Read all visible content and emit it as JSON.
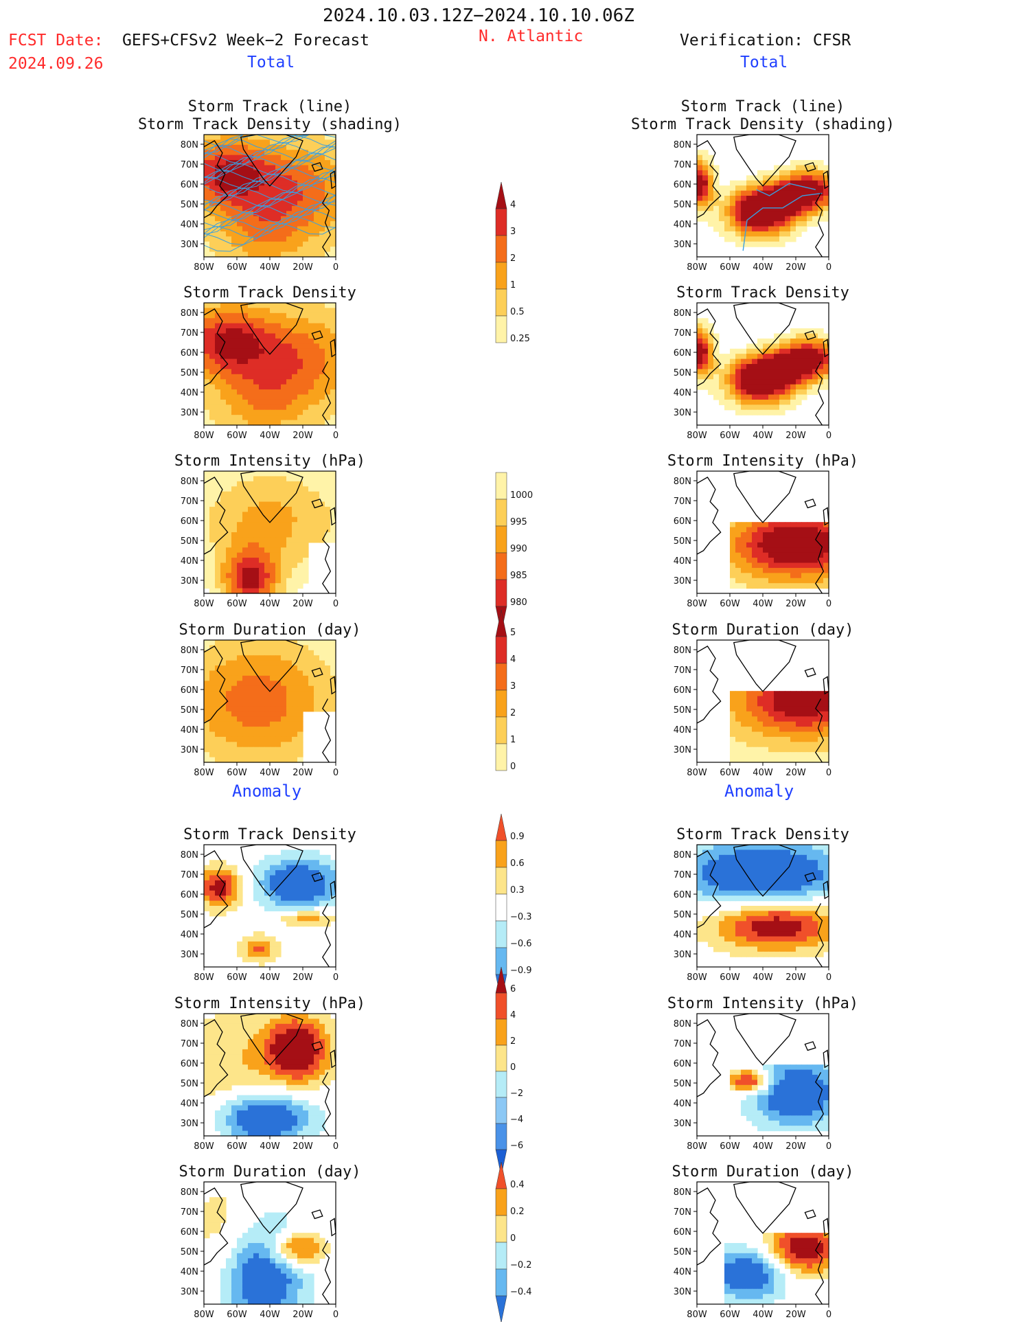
{
  "header": {
    "period": "2024.10.03.12Z−2024.10.10.06Z",
    "fcst_date_label": "FCST Date:",
    "fcst_model": "GEFS+CFSv2 Week−2 Forecast",
    "fcst_date": "2024.09.26",
    "region": "N. Atlantic",
    "verification": "Verification: CFSR",
    "total_left": "Total",
    "total_right": "Total",
    "anomaly_left": "Anomaly",
    "anomaly_right": "Anomaly"
  },
  "colors": {
    "red_text": "#ff2a2a",
    "blue_text": "#1f3fff"
  },
  "panels": [
    {
      "id": "fcst-track-total",
      "title_lines": [
        "Storm Track (line)",
        "Storm Track Density (shading)"
      ],
      "field": "density",
      "source": "forecast"
    },
    {
      "id": "obs-track-total",
      "title_lines": [
        "Storm Track (line)",
        "Storm Track Density (shading)"
      ],
      "field": "density",
      "source": "observed"
    },
    {
      "id": "fcst-density-total",
      "title_lines": [
        "Storm Track Density"
      ],
      "field": "density",
      "source": "forecast"
    },
    {
      "id": "obs-density-total",
      "title_lines": [
        "Storm Track Density"
      ],
      "field": "density",
      "source": "observed"
    },
    {
      "id": "fcst-intensity-total",
      "title_lines": [
        "Storm Intensity (hPa)"
      ],
      "field": "intensity",
      "source": "forecast"
    },
    {
      "id": "obs-intensity-total",
      "title_lines": [
        "Storm Intensity (hPa)"
      ],
      "field": "intensity",
      "source": "observed"
    },
    {
      "id": "fcst-duration-total",
      "title_lines": [
        "Storm Duration (day)"
      ],
      "field": "duration",
      "source": "forecast"
    },
    {
      "id": "obs-duration-total",
      "title_lines": [
        "Storm Duration (day)"
      ],
      "field": "duration",
      "source": "observed"
    },
    {
      "id": "fcst-density-anom",
      "title_lines": [
        "Storm Track Density"
      ],
      "field": "density_anom",
      "source": "forecast"
    },
    {
      "id": "obs-density-anom",
      "title_lines": [
        "Storm Track Density"
      ],
      "field": "density_anom",
      "source": "observed"
    },
    {
      "id": "fcst-intensity-anom",
      "title_lines": [
        "Storm Intensity (hPa)"
      ],
      "field": "intensity_anom",
      "source": "forecast"
    },
    {
      "id": "obs-intensity-anom",
      "title_lines": [
        "Storm Intensity (hPa)"
      ],
      "field": "intensity_anom",
      "source": "observed"
    },
    {
      "id": "fcst-duration-anom",
      "title_lines": [
        "Storm Duration (day)"
      ],
      "field": "duration_anom",
      "source": "forecast"
    },
    {
      "id": "obs-duration-anom",
      "title_lines": [
        "Storm Duration (day)"
      ],
      "field": "duration_anom",
      "source": "observed"
    }
  ],
  "axes": {
    "lat_ticks": [
      "80N",
      "70N",
      "60N",
      "50N",
      "40N",
      "30N"
    ],
    "lon_ticks": [
      "80W",
      "60W",
      "40W",
      "20W",
      "0"
    ]
  },
  "colorbars": [
    {
      "id": "cb-density",
      "labels": [
        "4",
        "3",
        "2",
        "1",
        "0.5",
        "0.25"
      ],
      "colors": [
        "#a50f15",
        "#de2d26",
        "#f46d1a",
        "#f9a21b",
        "#fdcf58",
        "#fff3a8"
      ],
      "top_arrow": true,
      "bottom_arrow": false
    },
    {
      "id": "cb-intensity",
      "labels": [
        "1000",
        "995",
        "990",
        "985",
        "980"
      ],
      "colors": [
        "#fff3a8",
        "#fdcf58",
        "#f9a21b",
        "#f46d1a",
        "#de2d26",
        "#a50f15"
      ],
      "top_arrow": false,
      "bottom_arrow": true
    },
    {
      "id": "cb-duration",
      "labels": [
        "5",
        "4",
        "3",
        "2",
        "1",
        "0"
      ],
      "colors": [
        "#a50f15",
        "#de2d26",
        "#f46d1a",
        "#f9a21b",
        "#fdcf58",
        "#fff3a8"
      ],
      "top_arrow": true,
      "bottom_arrow": false
    },
    {
      "id": "cb-density-anom",
      "labels": [
        "0.9",
        "0.6",
        "0.3",
        "−0.3",
        "−0.6",
        "−0.9"
      ],
      "colors": [
        "#f0502a",
        "#f9a21b",
        "#fde58a",
        "#ffffff",
        "#b5ecf7",
        "#66b8f0",
        "#2a72d8"
      ],
      "top_arrow": true,
      "bottom_arrow": true
    },
    {
      "id": "cb-intensity-anom",
      "labels": [
        "6",
        "4",
        "2",
        "0",
        "−2",
        "−4",
        "−6"
      ],
      "colors": [
        "#a50f15",
        "#f0502a",
        "#f9a21b",
        "#fde58a",
        "#b5ecf7",
        "#8cc8f5",
        "#4a92e8",
        "#1c5fd4"
      ],
      "top_arrow": true,
      "bottom_arrow": true
    },
    {
      "id": "cb-duration-anom",
      "labels": [
        "0.4",
        "0.2",
        "0",
        "−0.2",
        "−0.4"
      ],
      "colors": [
        "#f0502a",
        "#f9a21b",
        "#fde58a",
        "#b5ecf7",
        "#66b8f0",
        "#2a72d8"
      ],
      "top_arrow": true,
      "bottom_arrow": true
    }
  ]
}
